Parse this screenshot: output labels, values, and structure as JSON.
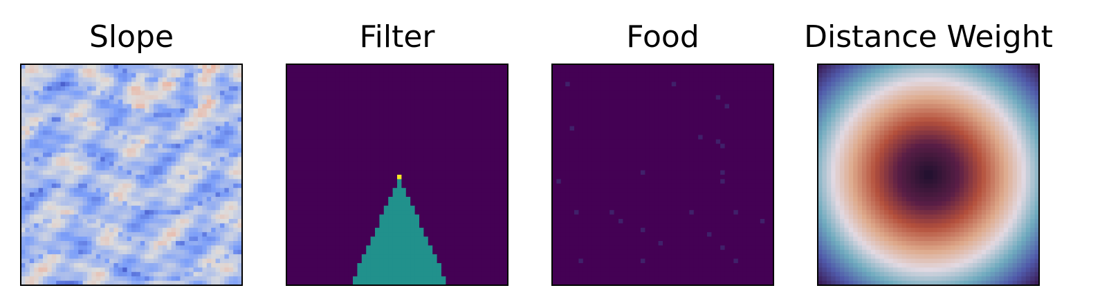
{
  "figure": {
    "panels": [
      {
        "title": "Slope"
      },
      {
        "title": "Filter"
      },
      {
        "title": "Food"
      },
      {
        "title": "Distance Weight"
      }
    ]
  },
  "chart_data": [
    {
      "type": "heatmap",
      "title": "Slope",
      "grid_size": [
        50,
        50
      ],
      "colormap": "coolwarm",
      "axes_visible": false,
      "grid": false,
      "description_of_values": "noisy terrain slope field; mostly mid-low blue values with darker blue ridges and a few pale orange highs near the top"
    },
    {
      "type": "heatmap",
      "title": "Filter",
      "grid_size": [
        50,
        50
      ],
      "colormap": "viridis",
      "axes_visible": false,
      "grid": false,
      "value_levels": [
        0,
        0.5,
        1
      ],
      "cone": {
        "apex_row": 25,
        "apex_col": 25,
        "bottom_row": 49
      }
    },
    {
      "type": "heatmap",
      "title": "Food",
      "grid_size": [
        50,
        50
      ],
      "colormap": "viridis",
      "axes_visible": false,
      "grid": false,
      "food_cells": [
        [
          4,
          3
        ],
        [
          4,
          27
        ],
        [
          7,
          37
        ],
        [
          9,
          39
        ],
        [
          14,
          4
        ],
        [
          16,
          33
        ],
        [
          17,
          37
        ],
        [
          18,
          38
        ],
        [
          24,
          20
        ],
        [
          24,
          38
        ],
        [
          26,
          1
        ],
        [
          26,
          38
        ],
        [
          33,
          5
        ],
        [
          33,
          13
        ],
        [
          33,
          31
        ],
        [
          33,
          41
        ],
        [
          35,
          15
        ],
        [
          35,
          47
        ],
        [
          37,
          20
        ],
        [
          38,
          35
        ],
        [
          40,
          24
        ],
        [
          41,
          38
        ],
        [
          44,
          6
        ],
        [
          44,
          20
        ],
        [
          44,
          41
        ]
      ]
    },
    {
      "type": "heatmap",
      "title": "Distance Weight",
      "grid_size": [
        50,
        50
      ],
      "colormap": "twilight_shifted",
      "axes_visible": false,
      "grid": false,
      "center": [
        24.5,
        24.5
      ],
      "description_of_values": "radially symmetric weight: dark center, warm orange ring, white ring, teal/blue then purple toward the corners"
    }
  ]
}
